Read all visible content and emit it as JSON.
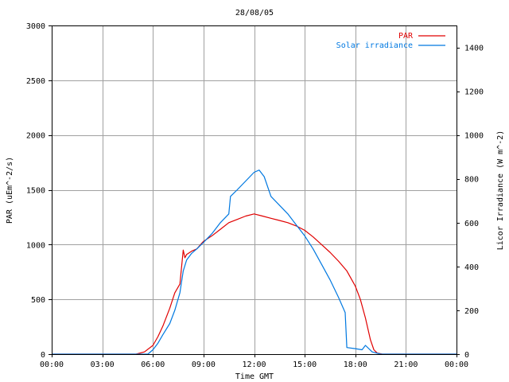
{
  "chart_data": {
    "type": "line",
    "title": "28/08/05",
    "xlabel": "Time GMT",
    "ylabel_left": "PAR (uEm^-2/s)",
    "ylabel_right": "Licor Irradiance (W m^-2)",
    "x_ticks": [
      "00:00",
      "03:00",
      "06:00",
      "09:00",
      "12:00",
      "15:00",
      "18:00",
      "21:00",
      "00:00"
    ],
    "x_tick_hours": [
      0,
      3,
      6,
      9,
      12,
      15,
      18,
      21,
      24
    ],
    "xlim_hours": [
      0,
      24
    ],
    "ylim_left": [
      0,
      3000
    ],
    "ylim_right": [
      0,
      1500
    ],
    "y_left_ticks": [
      0,
      500,
      1000,
      1500,
      2000,
      2500,
      3000
    ],
    "y_right_ticks": [
      0,
      200,
      400,
      600,
      800,
      1000,
      1200,
      1400
    ],
    "grid": true,
    "legend_position": "top-right",
    "series": [
      {
        "name": "PAR",
        "axis": "left",
        "color": "#e00000",
        "x_hours": [
          0,
          5.0,
          5.5,
          6.0,
          6.3,
          6.6,
          7.0,
          7.3,
          7.6,
          7.8,
          7.9,
          8.0,
          8.3,
          8.6,
          9.0,
          9.5,
          10.0,
          10.5,
          11.0,
          11.5,
          12.0,
          12.5,
          13.0,
          13.5,
          14.0,
          14.5,
          15.0,
          15.5,
          16.0,
          16.5,
          17.0,
          17.5,
          18.0,
          18.3,
          18.6,
          18.9,
          19.1,
          19.3,
          19.6,
          24
        ],
        "values": [
          0,
          0,
          20,
          80,
          160,
          260,
          420,
          560,
          640,
          950,
          880,
          910,
          940,
          960,
          1030,
          1080,
          1140,
          1200,
          1230,
          1260,
          1280,
          1260,
          1240,
          1220,
          1200,
          1170,
          1130,
          1070,
          1000,
          930,
          850,
          760,
          620,
          500,
          330,
          130,
          40,
          10,
          0,
          0
        ]
      },
      {
        "name": "Solar irradiance",
        "axis": "right",
        "color": "#0078e0",
        "x_hours": [
          0,
          5.7,
          6.0,
          6.3,
          6.6,
          7.0,
          7.3,
          7.6,
          7.8,
          8.0,
          8.3,
          8.6,
          9.0,
          9.5,
          10.0,
          10.5,
          10.6,
          11.0,
          11.5,
          12.0,
          12.3,
          12.6,
          13.0,
          13.5,
          14.0,
          14.5,
          15.0,
          15.5,
          16.0,
          16.5,
          17.0,
          17.4,
          17.5,
          18.0,
          18.4,
          18.6,
          19.0,
          19.5,
          24
        ],
        "values": [
          0,
          0,
          20,
          50,
          90,
          140,
          200,
          280,
          380,
          430,
          460,
          480,
          510,
          550,
          600,
          640,
          720,
          750,
          790,
          830,
          840,
          810,
          720,
          680,
          640,
          590,
          540,
          480,
          410,
          340,
          260,
          190,
          30,
          25,
          20,
          40,
          10,
          0,
          0
        ]
      }
    ]
  }
}
